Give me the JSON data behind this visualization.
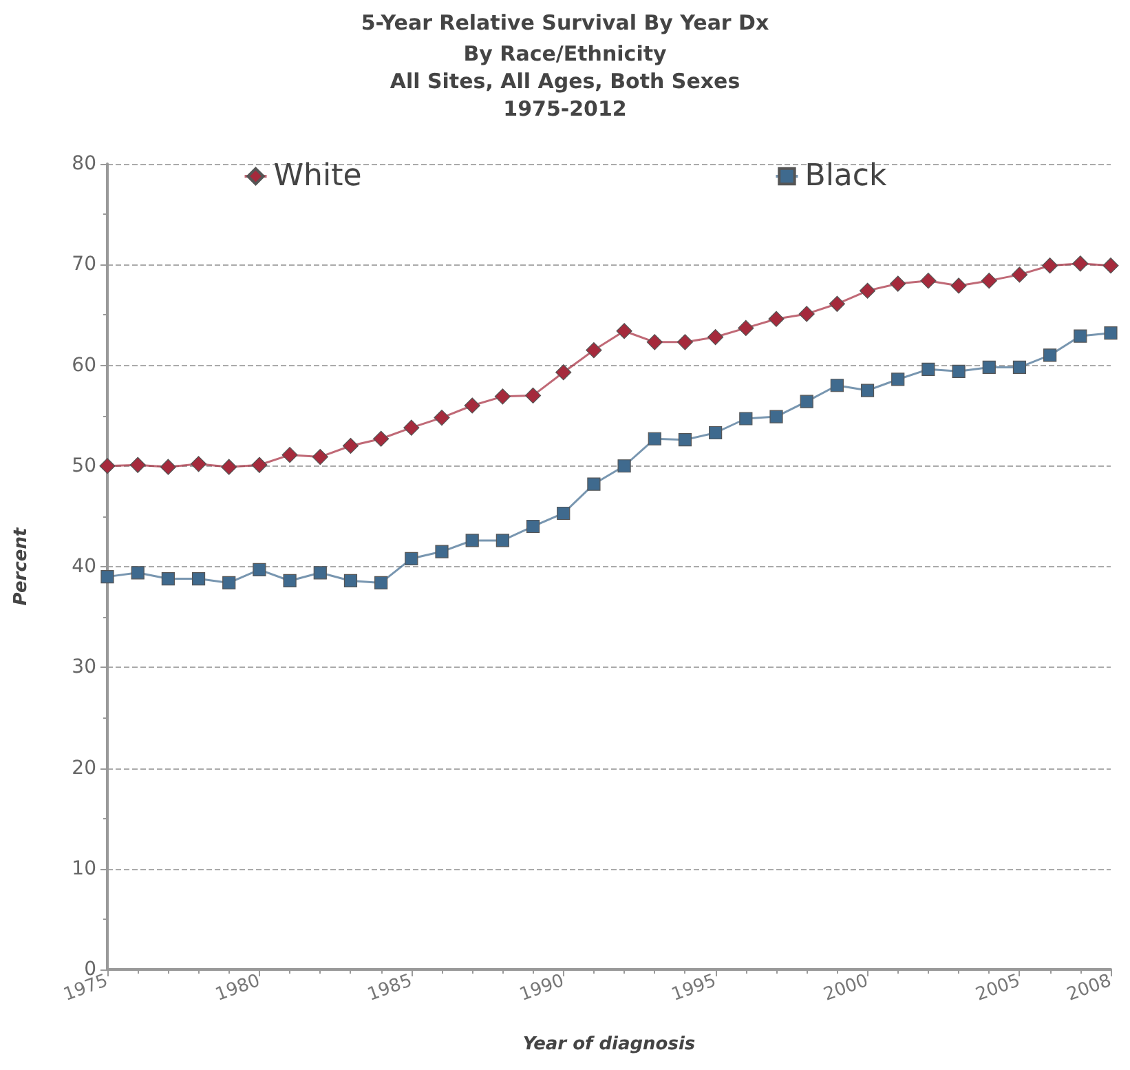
{
  "chart_data": {
    "type": "line",
    "title": "5-Year Relative Survival By Year Dx",
    "subtitle": "By Race/Ethnicity\nAll Sites, All Ages, Both Sexes\n1975-2012",
    "xlabel": "Year of diagnosis",
    "ylabel": "Percent",
    "x": [
      1975,
      1976,
      1977,
      1978,
      1979,
      1980,
      1981,
      1982,
      1983,
      1984,
      1985,
      1986,
      1987,
      1988,
      1989,
      1990,
      1991,
      1992,
      1993,
      1994,
      1995,
      1996,
      1997,
      1998,
      1999,
      2000,
      2001,
      2002,
      2003,
      2004,
      2005,
      2006,
      2007,
      2008
    ],
    "series": [
      {
        "name": "White",
        "color": "#a52a3c",
        "marker": "diamond",
        "values": [
          50.0,
          50.1,
          49.9,
          50.2,
          49.9,
          50.1,
          51.1,
          50.9,
          52.0,
          52.7,
          53.8,
          54.8,
          56.0,
          56.9,
          57.0,
          59.3,
          61.5,
          63.4,
          62.3,
          62.3,
          62.8,
          63.7,
          64.6,
          65.1,
          66.1,
          67.4,
          68.1,
          68.4,
          67.9,
          68.4,
          69.0,
          69.9,
          70.1,
          69.9
        ]
      },
      {
        "name": "Black",
        "color": "#3f6a8e",
        "marker": "square",
        "values": [
          39.0,
          39.4,
          38.8,
          38.8,
          38.4,
          39.7,
          38.6,
          39.4,
          38.6,
          38.4,
          40.8,
          41.5,
          42.6,
          42.6,
          44.0,
          45.3,
          48.2,
          50.0,
          52.7,
          52.6,
          53.3,
          54.7,
          54.9,
          56.4,
          58.0,
          57.5,
          58.6,
          59.6,
          59.4,
          59.8,
          59.8,
          61.0,
          62.9,
          63.2
        ]
      }
    ],
    "xlim": [
      1975,
      2008
    ],
    "xticks": [
      1975,
      1980,
      1985,
      1990,
      1995,
      2000,
      2005,
      2008
    ],
    "ylim": [
      0,
      80
    ],
    "yticks": [
      0,
      10,
      20,
      30,
      40,
      50,
      60,
      70,
      80
    ],
    "grid": "y",
    "legend": "top",
    "line_style": "solid"
  }
}
